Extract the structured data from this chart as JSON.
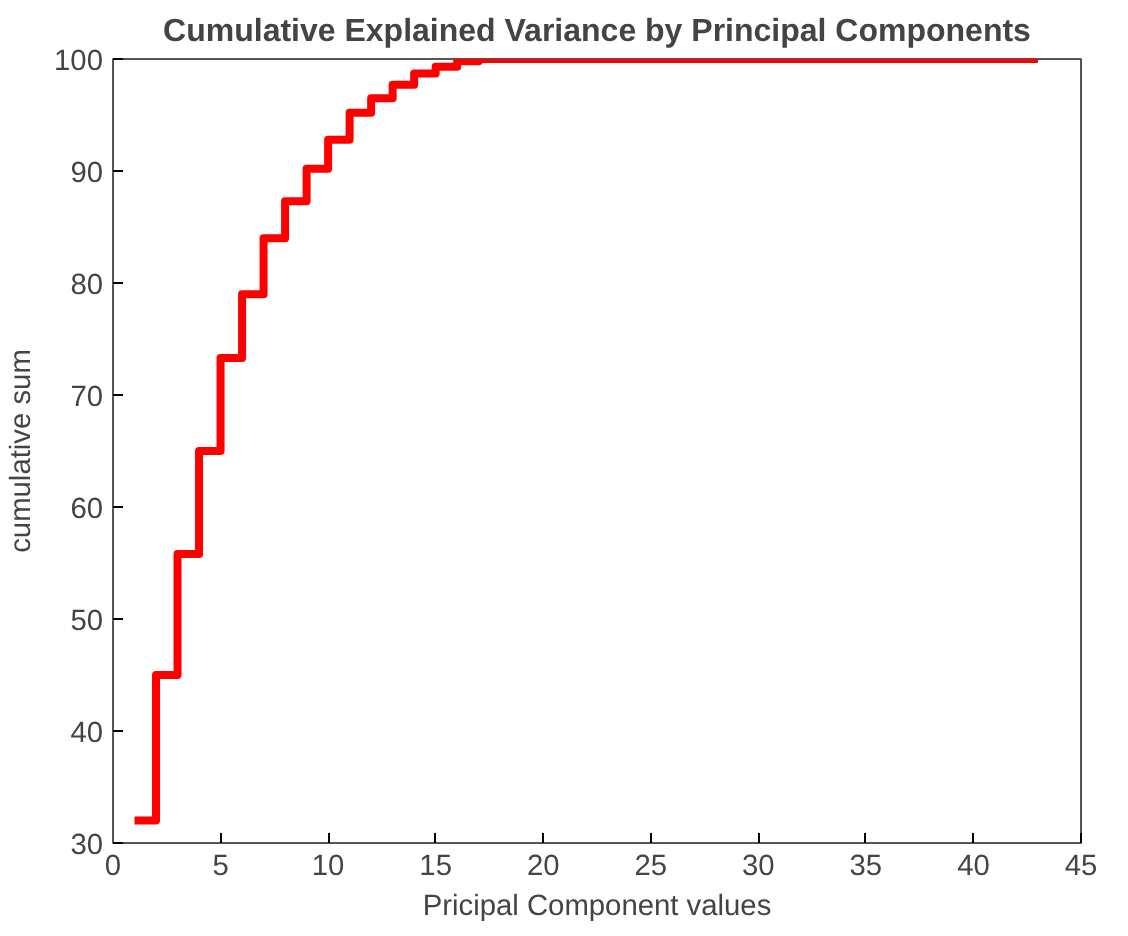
{
  "chart_data": {
    "type": "step",
    "title": "Cumulative Explained Variance by Principal Components",
    "xlabel": "Pricipal Component values",
    "ylabel": "cumulative sum",
    "x": [
      1,
      2,
      3,
      4,
      5,
      6,
      7,
      8,
      9,
      10,
      11,
      12,
      13,
      14,
      15,
      16,
      17,
      18,
      19,
      20,
      21,
      22,
      23,
      24,
      25,
      26,
      27,
      28,
      29,
      30,
      31,
      32,
      33,
      34,
      35,
      36,
      37,
      38,
      39,
      40,
      41,
      42,
      43
    ],
    "series": [
      {
        "color": "#ff0000",
        "values": [
          32,
          45,
          55.8,
          65,
          73.3,
          79,
          84,
          87.3,
          90.2,
          92.8,
          95.2,
          96.5,
          97.7,
          98.7,
          99.3,
          99.8,
          100,
          100,
          100,
          100,
          100,
          100,
          100,
          100,
          100,
          100,
          100,
          100,
          100,
          100,
          100,
          100,
          100,
          100,
          100,
          100,
          100,
          100,
          100,
          100,
          100,
          100,
          100
        ]
      }
    ],
    "xlim": [
      0,
      45
    ],
    "ylim": [
      30,
      100
    ],
    "xticks": [
      0,
      5,
      10,
      15,
      20,
      25,
      30,
      35,
      40,
      45
    ],
    "yticks": [
      30,
      40,
      50,
      60,
      70,
      80,
      90,
      100
    ],
    "grid": false,
    "marker": "none",
    "line_style": "solid"
  }
}
